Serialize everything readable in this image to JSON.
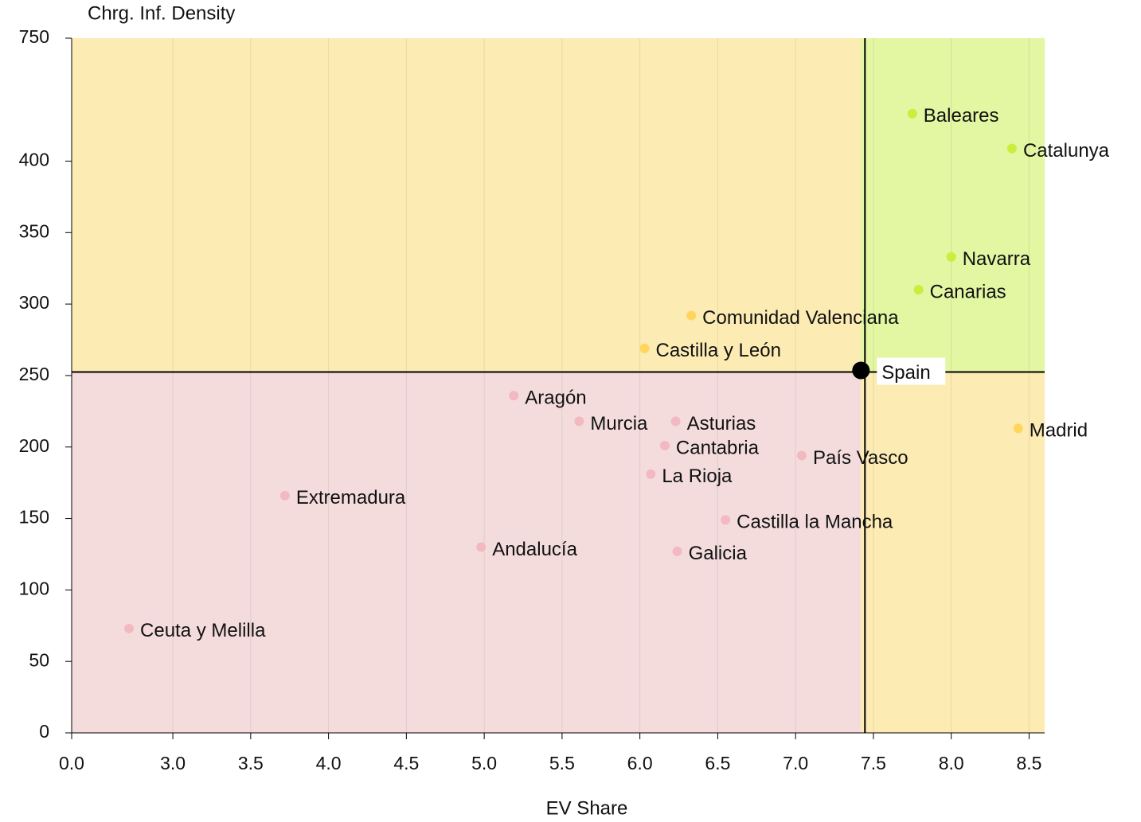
{
  "chart_data": {
    "type": "scatter",
    "xlabel": "EV Share",
    "ylabel": "Chrg. Inf. Density",
    "xlim": [
      0,
      8.6
    ],
    "ylim": [
      0,
      750
    ],
    "xticks": [
      {
        "value": 0,
        "label": "0.0"
      },
      {
        "value": 3,
        "label": "3.0"
      },
      3.5,
      {
        "value": 4,
        "label": "4.0"
      },
      4.5,
      {
        "value": 5,
        "label": "5.0"
      },
      5.5,
      {
        "value": 6,
        "label": "6.0"
      },
      6.5,
      {
        "value": 7,
        "label": "7.0"
      },
      7.5,
      {
        "value": 8,
        "label": "8.0"
      },
      8.5
    ],
    "yticks": [
      0,
      50,
      100,
      150,
      200,
      250,
      300,
      350,
      400,
      750
    ],
    "grid": true,
    "labels": [
      "Baleares",
      "Catalunya",
      "Navarra",
      "Canarias",
      "Comunidad Valenciana",
      "Castilla y León",
      "Madrid",
      "Aragón",
      "Murcia",
      "Asturias",
      "Cantabria",
      "La Rioja",
      "País Vasco",
      "Extremadura",
      "Andalucía",
      "Castilla la Mancha",
      "Galicia",
      "Ceuta y Melilla"
    ],
    "x": [
      7.75,
      8.39,
      8.0,
      7.79,
      6.33,
      6.03,
      8.43,
      5.19,
      5.61,
      6.23,
      6.16,
      6.07,
      7.04,
      3.72,
      4.98,
      6.55,
      6.24,
      1.7
    ],
    "values": [
      535,
      436,
      333,
      310,
      292,
      269,
      213,
      236,
      218,
      218,
      201,
      181,
      194,
      166,
      130,
      149,
      127,
      73
    ],
    "colors": [
      "#c9ee3c",
      "#c9ee3c",
      "#c9ee3c",
      "#c9ee3c",
      "#ffd55e",
      "#ffd55e",
      "#ffd55e",
      "#f2b9c1",
      "#f2b9c1",
      "#f2b9c1",
      "#f2b9c1",
      "#f2b9c1",
      "#f2b9c1",
      "#f2b9c1",
      "#f2b9c1",
      "#f2b9c1",
      "#f2b9c1",
      "#f2b9c1"
    ],
    "benchmark": {
      "label": "Spain",
      "x": 7.42,
      "y": 253,
      "color": "#000000"
    },
    "quadrant_colors": {
      "top_left": "#fdebb4",
      "top_right": "#e3f6a2",
      "bottom_left": "#f4dcdd",
      "bottom_right": "#fdebb4"
    }
  }
}
